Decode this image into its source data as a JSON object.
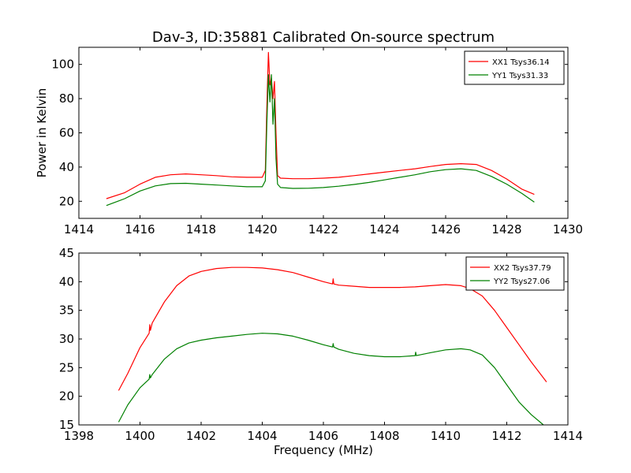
{
  "chart_data": [
    {
      "type": "line",
      "title": "Dav-3, ID:35881 Calibrated On-source spectrum",
      "xlabel": "",
      "ylabel": "Power in Kelvin",
      "xlim": [
        1414,
        1430
      ],
      "ylim": [
        10,
        110
      ],
      "x_ticks": [
        1414,
        1416,
        1418,
        1420,
        1422,
        1424,
        1426,
        1428,
        1430
      ],
      "y_ticks": [
        20,
        40,
        60,
        80,
        100
      ],
      "grid": false,
      "legend_position": "top-right",
      "series": [
        {
          "name": "XX1 Tsys36.14",
          "color": "#ff0000",
          "x": [
            1414.9,
            1415.5,
            1416,
            1416.5,
            1417,
            1417.5,
            1418,
            1418.5,
            1419,
            1419.5,
            1420,
            1420.1,
            1420.15,
            1420.2,
            1420.25,
            1420.3,
            1420.35,
            1420.4,
            1420.45,
            1420.5,
            1420.6,
            1421,
            1421.5,
            1422,
            1422.5,
            1423,
            1423.5,
            1424,
            1424.5,
            1425,
            1425.5,
            1426,
            1426.5,
            1427,
            1427.5,
            1428,
            1428.5,
            1428.9
          ],
          "y": [
            21.5,
            25,
            30,
            34,
            35.5,
            36,
            35.5,
            35,
            34.3,
            34,
            34,
            38,
            75,
            107,
            88,
            92,
            80,
            90,
            60,
            35,
            33.5,
            33.2,
            33.2,
            33.5,
            34,
            35,
            36,
            37,
            38,
            39,
            40.3,
            41.5,
            42,
            41.5,
            38,
            33,
            27,
            24
          ]
        },
        {
          "name": "YY1 Tsys31.33",
          "color": "#008000",
          "x": [
            1414.9,
            1415.5,
            1416,
            1416.5,
            1417,
            1417.5,
            1418,
            1418.5,
            1419,
            1419.5,
            1420,
            1420.1,
            1420.15,
            1420.2,
            1420.25,
            1420.3,
            1420.35,
            1420.4,
            1420.45,
            1420.5,
            1420.6,
            1421,
            1421.5,
            1422,
            1422.5,
            1423,
            1423.5,
            1424,
            1424.5,
            1425,
            1425.5,
            1426,
            1426.5,
            1427,
            1427.5,
            1428,
            1428.5,
            1428.9
          ],
          "y": [
            17.5,
            21.5,
            26,
            29,
            30.3,
            30.5,
            30,
            29.5,
            29,
            28.5,
            28.5,
            32,
            65,
            94,
            78,
            94,
            65,
            80,
            45,
            30,
            28,
            27.5,
            27.6,
            28,
            28.8,
            29.8,
            31,
            32.5,
            34,
            35.5,
            37.3,
            38.5,
            39,
            38,
            34.5,
            30,
            24.5,
            19.5
          ]
        }
      ]
    },
    {
      "type": "line",
      "title": "",
      "xlabel": "Frequency (MHz)",
      "ylabel": "",
      "xlim": [
        1398,
        1414
      ],
      "ylim": [
        15,
        45
      ],
      "x_ticks": [
        1398,
        1400,
        1402,
        1404,
        1406,
        1408,
        1410,
        1412,
        1414
      ],
      "y_ticks": [
        15,
        20,
        25,
        30,
        35,
        40,
        45
      ],
      "grid": false,
      "legend_position": "top-right",
      "series": [
        {
          "name": "XX2 Tsys37.79",
          "color": "#ff0000",
          "x": [
            1399.3,
            1399.6,
            1400,
            1400.3,
            1400.32,
            1400.34,
            1400.4,
            1400.8,
            1401.2,
            1401.6,
            1402,
            1402.5,
            1403,
            1403.5,
            1404,
            1404.5,
            1405,
            1405.5,
            1406,
            1406.3,
            1406.32,
            1406.34,
            1406.5,
            1407,
            1407.5,
            1408,
            1408.5,
            1409,
            1409.5,
            1410,
            1410.5,
            1410.8,
            1411.2,
            1411.6,
            1412,
            1412.4,
            1412.8,
            1413.3
          ],
          "y": [
            21,
            24,
            28.5,
            31,
            32.5,
            31.5,
            32.8,
            36.5,
            39.3,
            41,
            41.8,
            42.3,
            42.5,
            42.5,
            42.4,
            42.1,
            41.6,
            40.8,
            40,
            39.6,
            40.5,
            39.6,
            39.4,
            39.2,
            39,
            39,
            39,
            39.1,
            39.3,
            39.5,
            39.3,
            38.8,
            37.5,
            35,
            32,
            29,
            26,
            22.5
          ]
        },
        {
          "name": "YY2 Tsys27.06",
          "color": "#008000",
          "x": [
            1399.3,
            1399.6,
            1400,
            1400.3,
            1400.32,
            1400.34,
            1400.4,
            1400.8,
            1401.2,
            1401.6,
            1402,
            1402.5,
            1403,
            1403.5,
            1404,
            1404.5,
            1405,
            1405.5,
            1406,
            1406.3,
            1406.32,
            1406.34,
            1406.5,
            1407,
            1407.5,
            1408,
            1408.5,
            1409,
            1409.02,
            1409.04,
            1409.5,
            1410,
            1410.5,
            1410.8,
            1411.2,
            1411.6,
            1412,
            1412.4,
            1412.8,
            1413.2
          ],
          "y": [
            15.5,
            18.5,
            21.5,
            23,
            23.8,
            23.2,
            23.8,
            26.5,
            28.3,
            29.3,
            29.8,
            30.2,
            30.5,
            30.8,
            31,
            30.9,
            30.5,
            29.8,
            29,
            28.6,
            29.2,
            28.6,
            28.2,
            27.5,
            27.1,
            26.9,
            26.9,
            27.1,
            27.7,
            27.1,
            27.6,
            28.1,
            28.3,
            28.1,
            27.2,
            25,
            22,
            19,
            16.8,
            15
          ]
        }
      ]
    }
  ]
}
